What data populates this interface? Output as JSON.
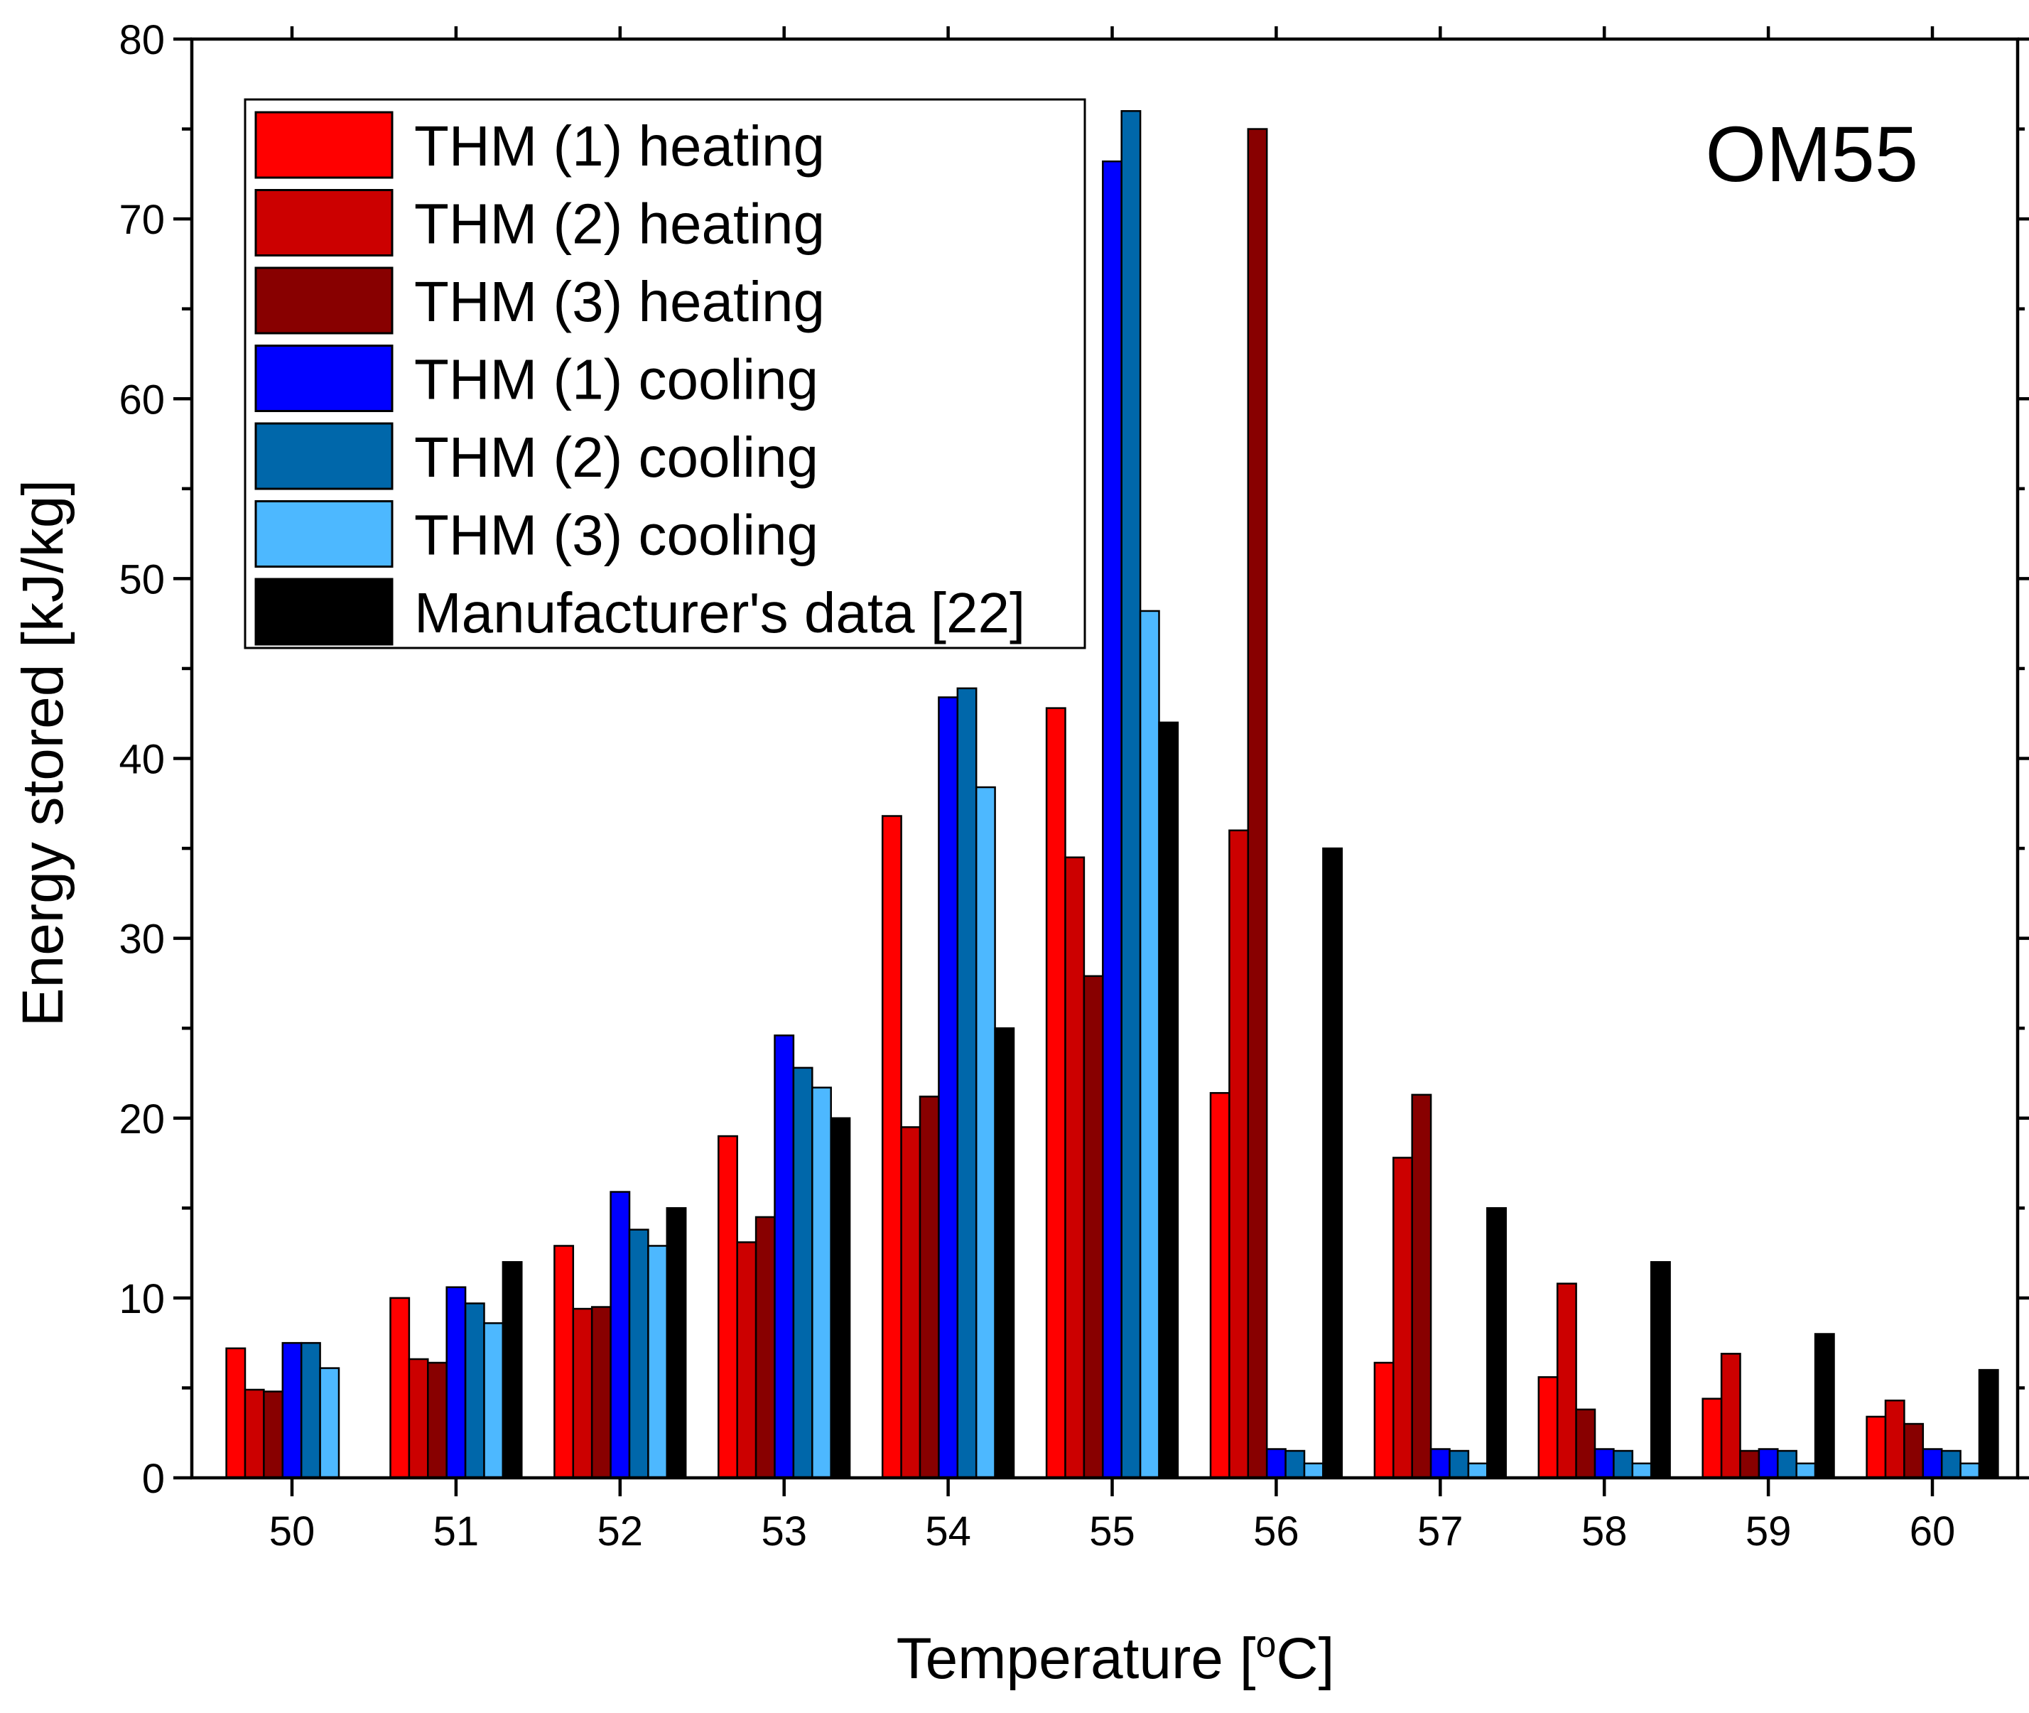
{
  "chart_data": {
    "type": "bar",
    "title": "",
    "annotation": "OM55",
    "xlabel": "Temperature [",
    "xlabel_sup": "o",
    "xlabel_suffix": "C]",
    "ylabel": "Energy stored [kJ/kg]",
    "ylim": [
      0,
      80
    ],
    "y_ticks": [
      0,
      10,
      20,
      30,
      40,
      50,
      60,
      70,
      80
    ],
    "categories": [
      "50",
      "51",
      "52",
      "53",
      "54",
      "55",
      "56",
      "57",
      "58",
      "59",
      "60"
    ],
    "legend_position": "top-left",
    "series": [
      {
        "name": "THM (1) heating",
        "color": "#ff0000",
        "values": [
          7.2,
          10.0,
          12.9,
          19.0,
          36.8,
          42.8,
          21.4,
          6.4,
          5.6,
          4.4,
          3.4
        ]
      },
      {
        "name": "THM (2) heating",
        "color": "#cc0000",
        "values": [
          4.9,
          6.6,
          9.4,
          13.1,
          19.5,
          34.5,
          36.0,
          17.8,
          10.8,
          6.9,
          4.3
        ]
      },
      {
        "name": "THM (3) heating",
        "color": "#880000",
        "values": [
          4.8,
          6.4,
          9.5,
          14.5,
          21.2,
          27.9,
          75.0,
          21.3,
          3.8,
          1.5,
          3.0
        ]
      },
      {
        "name": "THM (1) cooling",
        "color": "#0000ff",
        "values": [
          7.5,
          10.6,
          15.9,
          24.6,
          43.4,
          73.2,
          1.6,
          1.6,
          1.6,
          1.6,
          1.6
        ]
      },
      {
        "name": "THM (2) cooling",
        "color": "#0067aa",
        "values": [
          7.5,
          9.7,
          13.8,
          22.8,
          43.9,
          76.0,
          1.5,
          1.5,
          1.5,
          1.5,
          1.5
        ]
      },
      {
        "name": "THM (3) cooling",
        "color": "#4db8ff",
        "values": [
          6.1,
          8.6,
          12.9,
          21.7,
          38.4,
          48.2,
          0.8,
          0.8,
          0.8,
          0.8,
          0.8
        ]
      },
      {
        "name": "Manufacturer's data [22]",
        "color": "#000000",
        "values": [
          null,
          12.0,
          15.0,
          20.0,
          25.0,
          42.0,
          35.0,
          15.0,
          12.0,
          8.0,
          6.0
        ]
      }
    ]
  }
}
